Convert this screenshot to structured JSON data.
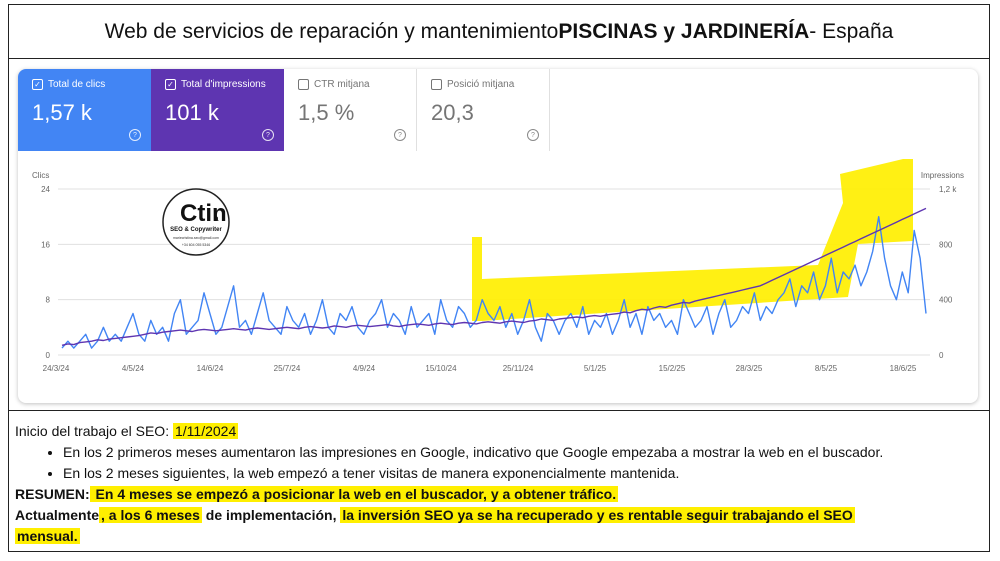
{
  "header": {
    "title_prefix": "Web de servicios de reparación y mantenimiento ",
    "title_bold": "PISCINAS y JARDINERÍA",
    "title_suffix": " - España"
  },
  "metrics": [
    {
      "label": "Total de clics",
      "value": "1,57 k",
      "checked": true,
      "color": "#4285f4"
    },
    {
      "label": "Total d'impressions",
      "value": "101 k",
      "checked": true,
      "color": "#5e35b1"
    },
    {
      "label": "CTR mitjana",
      "value": "1,5 %",
      "checked": false
    },
    {
      "label": "Posició mitjana",
      "value": "20,3",
      "checked": false
    }
  ],
  "logo": {
    "main": "Ctin",
    "sub": "a",
    "line1": "SEO & Copywriter",
    "line2": "mariecristina.seo@gmail.com",
    "line3": "+34 604 055 5346"
  },
  "chart_data": {
    "type": "line",
    "left_axis_label": "Clics",
    "right_axis_label": "Impressions",
    "left_ticks": [
      "24",
      "16",
      "8",
      "0"
    ],
    "right_ticks": [
      "1,2 k",
      "800",
      "400",
      "0"
    ],
    "x_ticks": [
      "24/3/24",
      "4/5/24",
      "14/6/24",
      "25/7/24",
      "4/9/24",
      "15/10/24",
      "25/11/24",
      "5/1/25",
      "15/2/25",
      "28/3/25",
      "8/5/25",
      "18/6/25"
    ],
    "ylim_left": [
      0,
      24
    ],
    "ylim_right": [
      0,
      1200
    ],
    "series": [
      {
        "name": "Clics",
        "color": "#4285f4",
        "axis": "left",
        "values": [
          1,
          2,
          1,
          2,
          3,
          1,
          2,
          4,
          2,
          3,
          2,
          4,
          6,
          3,
          2,
          5,
          3,
          4,
          2,
          6,
          8,
          3,
          4,
          5,
          9,
          6,
          3,
          4,
          7,
          10,
          4,
          5,
          3,
          6,
          9,
          5,
          4,
          3,
          7,
          5,
          4,
          6,
          3,
          5,
          8,
          4,
          3,
          6,
          5,
          7,
          4,
          3,
          5,
          6,
          8,
          4,
          6,
          5,
          3,
          7,
          4,
          5,
          6,
          3,
          8,
          5,
          4,
          7,
          6,
          4,
          5,
          8,
          6,
          5,
          7,
          4,
          6,
          3,
          5,
          8,
          4,
          2,
          6,
          5,
          3,
          5,
          6,
          4,
          7,
          3,
          5,
          4,
          6,
          3,
          5,
          8,
          4,
          6,
          3,
          7,
          5,
          6,
          4,
          5,
          3,
          8,
          6,
          4,
          5,
          7,
          3,
          6,
          8,
          4,
          5,
          7,
          6,
          9,
          5,
          7,
          6,
          8,
          9,
          11,
          7,
          10,
          9,
          12,
          8,
          10,
          14,
          9,
          12,
          11,
          13,
          10,
          12,
          15,
          20,
          14,
          10,
          8,
          12,
          9,
          18,
          14,
          6
        ]
      },
      {
        "name": "Impressions",
        "color": "#5e35b1",
        "axis": "right",
        "values": [
          70,
          80,
          75,
          90,
          95,
          100,
          110,
          105,
          115,
          120,
          125,
          130,
          135,
          140,
          150,
          160,
          155,
          165,
          170,
          175,
          180,
          175,
          170,
          180,
          185,
          180,
          175,
          180,
          185,
          190,
          185,
          180,
          190,
          195,
          190,
          185,
          190,
          195,
          200,
          195,
          190,
          200,
          205,
          200,
          195,
          200,
          210,
          205,
          200,
          210,
          215,
          210,
          205,
          210,
          215,
          220,
          210,
          205,
          215,
          220,
          225,
          220,
          215,
          225,
          230,
          225,
          220,
          230,
          235,
          230,
          225,
          235,
          240,
          235,
          230,
          240,
          245,
          240,
          235,
          245,
          250,
          260,
          255,
          250,
          260,
          265,
          270,
          275,
          270,
          280,
          285,
          280,
          290,
          295,
          300,
          310,
          305,
          320,
          330,
          325,
          340,
          350,
          345,
          360,
          370,
          380,
          375,
          390,
          400,
          410,
          420,
          430,
          440,
          450,
          460,
          470,
          480,
          490,
          500,
          520,
          540,
          560,
          580,
          600,
          620,
          640,
          660,
          680,
          700,
          720,
          740,
          760,
          780,
          800,
          820,
          840,
          860,
          880,
          900,
          920,
          940,
          960,
          980,
          1000,
          1020,
          1040,
          1060
        ]
      }
    ]
  },
  "notes": {
    "start_prefix": "Inicio del trabajo el SEO: ",
    "start_date": "1/11/2024",
    "bullets": [
      "En los 2 primeros meses aumentaron las impresiones en Google, indicativo que Google empezaba a mostrar la web en el buscador.",
      "En los 2 meses siguientes, la web empezó a tener visitas de manera exponencialmente mantenida."
    ],
    "resumen_label": "RESUMEN:",
    "resumen_text": " En 4 meses se empezó a posicionar la web en el buscador, y a obtener tráfico.",
    "actual_1": "Actualmente",
    "actual_2": ", a los 6 meses",
    "actual_3": " de implementación, ",
    "actual_4": "la inversión SEO ya se ha recuperado y es rentable seguir trabajando el SEO",
    "actual_5": "mensual."
  },
  "colors": {
    "highlight": "#ffef00",
    "clics": "#4285f4",
    "impressions": "#5e35b1",
    "grid": "#e0e0e0"
  }
}
